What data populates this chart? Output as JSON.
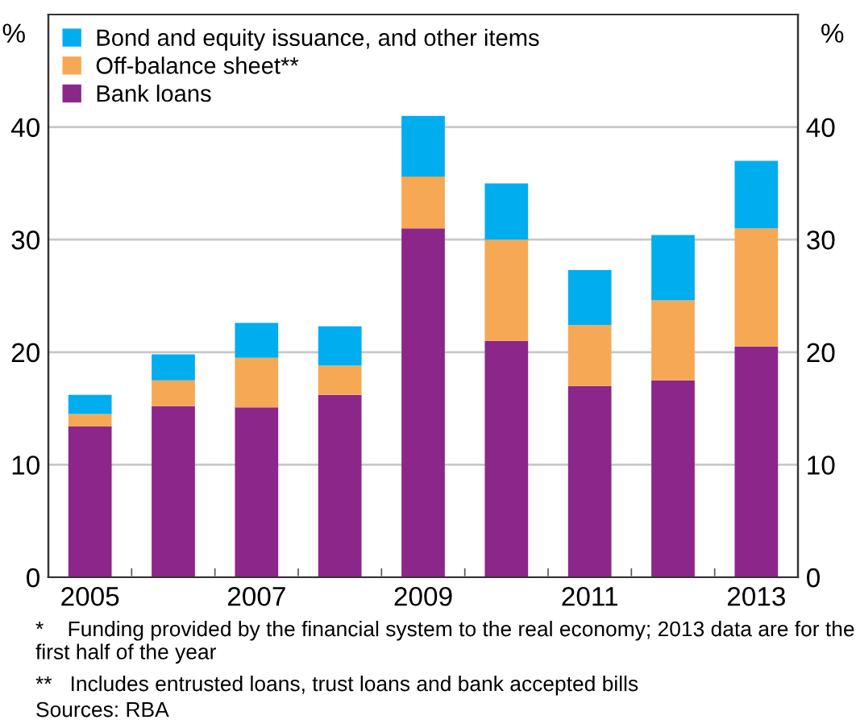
{
  "chart_data": {
    "type": "bar",
    "stacked": true,
    "categories": [
      "2005",
      null,
      "2007",
      null,
      "2009",
      null,
      "2011",
      null,
      "2013"
    ],
    "series": [
      {
        "name": "Bank loans",
        "color": "#8c268a",
        "values": [
          13.4,
          15.2,
          15.1,
          16.2,
          31.0,
          21.0,
          17.0,
          17.5,
          20.5
        ]
      },
      {
        "name": "Off-balance sheet**",
        "color": "#f7a854",
        "values": [
          1.1,
          2.3,
          4.4,
          2.6,
          4.6,
          9.0,
          5.4,
          7.1,
          10.5
        ]
      },
      {
        "name": "Bond and equity issuance, and other items",
        "color": "#00adef",
        "values": [
          1.7,
          2.3,
          3.1,
          3.5,
          5.4,
          5.0,
          4.9,
          5.8,
          6.0
        ]
      }
    ],
    "ylabel": "%",
    "y2label": "%",
    "ylim": [
      0,
      50
    ],
    "yticks": [
      0,
      10,
      20,
      30,
      40
    ],
    "y2lim": [
      0,
      50
    ],
    "y2ticks": [
      0,
      10,
      20,
      30,
      40
    ],
    "grid": "y",
    "legend": "top left",
    "annotations": [
      "*    Funding provided by the financial system to the real economy; 2013 data are for the first half of the year",
      "**   Includes entrusted loans, trust loans and bank accepted bills",
      "Sources: RBA"
    ]
  }
}
